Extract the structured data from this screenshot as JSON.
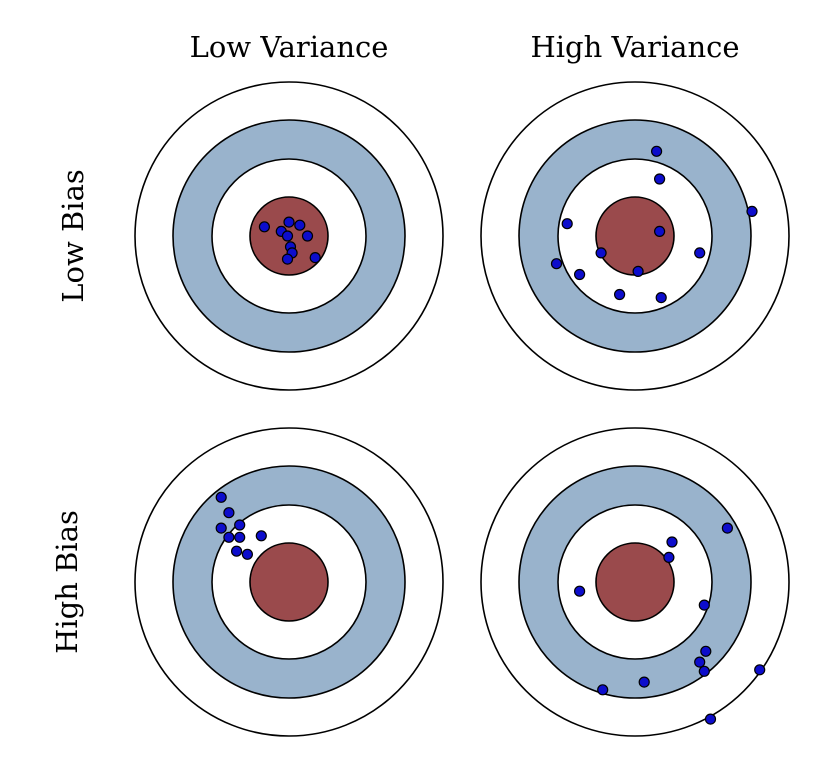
{
  "columns": [
    {
      "label": "Low Variance"
    },
    {
      "label": "High Variance"
    }
  ],
  "rows": [
    {
      "label": "Low Bias"
    },
    {
      "label": "High Bias"
    }
  ],
  "colors": {
    "bullseye": "#9a4a4c",
    "blue_ring": "#99b3cc",
    "ring_white": "#ffffff",
    "outline": "#000000",
    "dot_fill": "#0d0dcc",
    "dot_stroke": "#000000"
  },
  "targets": [
    {
      "name": "low-bias-low-variance",
      "shots": [
        [
          -0.16,
          0.06
        ],
        [
          -0.05,
          0.03
        ],
        [
          0.0,
          0.09
        ],
        [
          0.07,
          0.07
        ],
        [
          -0.01,
          0.0
        ],
        [
          0.12,
          0.0
        ],
        [
          0.01,
          -0.07
        ],
        [
          0.02,
          -0.11
        ],
        [
          -0.01,
          -0.15
        ],
        [
          0.17,
          -0.14
        ]
      ]
    },
    {
      "name": "low-bias-high-variance",
      "shots": [
        [
          0.14,
          0.55
        ],
        [
          0.16,
          0.37
        ],
        [
          -0.44,
          0.08
        ],
        [
          0.76,
          0.16
        ],
        [
          0.16,
          0.03
        ],
        [
          -0.22,
          -0.11
        ],
        [
          0.42,
          -0.11
        ],
        [
          -0.51,
          -0.18
        ],
        [
          -0.36,
          -0.25
        ],
        [
          0.02,
          -0.23
        ],
        [
          -0.1,
          -0.38
        ],
        [
          0.17,
          -0.4
        ]
      ]
    },
    {
      "name": "high-bias-low-variance",
      "shots": [
        [
          -0.44,
          0.55
        ],
        [
          -0.39,
          0.45
        ],
        [
          -0.32,
          0.37
        ],
        [
          -0.44,
          0.35
        ],
        [
          -0.39,
          0.29
        ],
        [
          -0.32,
          0.29
        ],
        [
          -0.18,
          0.3
        ],
        [
          -0.34,
          0.2
        ],
        [
          -0.27,
          0.18
        ]
      ]
    },
    {
      "name": "high-bias-high-variance",
      "shots": [
        [
          0.6,
          0.35
        ],
        [
          0.24,
          0.26
        ],
        [
          0.22,
          0.16
        ],
        [
          -0.36,
          -0.06
        ],
        [
          0.45,
          -0.15
        ],
        [
          0.46,
          -0.45
        ],
        [
          0.42,
          -0.52
        ],
        [
          0.45,
          -0.58
        ],
        [
          0.81,
          -0.57
        ],
        [
          0.06,
          -0.65
        ],
        [
          -0.21,
          -0.7
        ],
        [
          0.49,
          -0.89
        ]
      ]
    }
  ]
}
